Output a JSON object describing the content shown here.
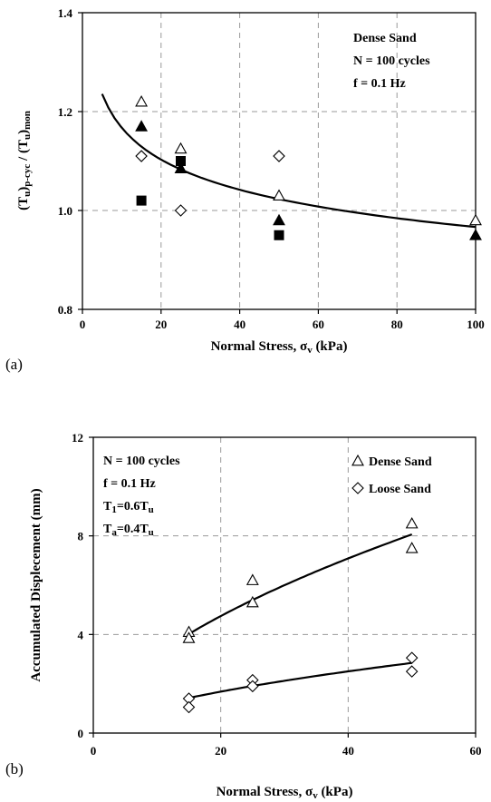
{
  "chart_data": [
    {
      "id": "a",
      "type": "scatter",
      "panel_label": "(a)",
      "title": "",
      "xlabel": "Normal Stress, σv (kPa)",
      "ylabel": "(Tu)p-cyc / (Tu)mon",
      "xlim": [
        0,
        100
      ],
      "ylim": [
        0.8,
        1.4
      ],
      "xticks": [
        0,
        20,
        40,
        60,
        80,
        100
      ],
      "yticks": [
        0.8,
        1.0,
        1.2,
        1.4
      ],
      "ytick_labels": [
        "0.8",
        "1.0",
        "1.2",
        "1.4"
      ],
      "grid": true,
      "annotations": [
        "Dense Sand",
        "N = 100 cycles",
        "f = 0.1 Hz"
      ],
      "series": [
        {
          "marker": "open-triangle",
          "points": [
            [
              15,
              1.22
            ],
            [
              25,
              1.125
            ],
            [
              50,
              1.03
            ],
            [
              100,
              0.98
            ]
          ]
        },
        {
          "marker": "filled-triangle",
          "points": [
            [
              15,
              1.17
            ],
            [
              25,
              1.085
            ],
            [
              50,
              0.98
            ],
            [
              100,
              0.95
            ]
          ]
        },
        {
          "marker": "filled-square",
          "points": [
            [
              15,
              1.02
            ],
            [
              25,
              1.1
            ],
            [
              50,
              0.95
            ]
          ]
        },
        {
          "marker": "open-diamond",
          "points": [
            [
              15,
              1.11
            ],
            [
              25,
              1.0
            ],
            [
              50,
              1.11
            ]
          ]
        }
      ],
      "fit": {
        "power": {
          "a": 1.41,
          "b": -0.082
        },
        "x_from": 5,
        "x_to": 100
      }
    },
    {
      "id": "b",
      "type": "scatter",
      "panel_label": "(b)",
      "title": "",
      "xlabel": "Normal Stress, σv (kPa)",
      "ylabel": "Accumulated Displecement (mm)",
      "xlim": [
        0,
        60
      ],
      "ylim": [
        0,
        12
      ],
      "xticks": [
        0,
        20,
        40,
        60
      ],
      "yticks": [
        0,
        4,
        8,
        12
      ],
      "ytick_labels": [
        "0",
        "4",
        "8",
        "12"
      ],
      "grid": true,
      "annotations": [
        "N = 100 cycles",
        "f = 0.1 Hz",
        "T1=0.6Tu",
        "Ta=0.4Tu"
      ],
      "legend_position": "top-right",
      "series": [
        {
          "name": "Dense Sand",
          "marker": "open-triangle",
          "points": [
            [
              15,
              4.1
            ],
            [
              15,
              3.85
            ],
            [
              25,
              6.2
            ],
            [
              25,
              5.3
            ],
            [
              50,
              8.5
            ],
            [
              50,
              7.5
            ]
          ],
          "fit": {
            "power": {
              "a": 0.84,
              "b": 0.578
            },
            "x_from": 15,
            "x_to": 50
          }
        },
        {
          "name": "Loose Sand",
          "marker": "open-diamond",
          "points": [
            [
              15,
              1.4
            ],
            [
              15,
              1.05
            ],
            [
              25,
              2.15
            ],
            [
              25,
              1.9
            ],
            [
              50,
              3.05
            ],
            [
              50,
              2.5
            ]
          ],
          "fit": {
            "power": {
              "a": 0.3,
              "b": 0.575
            },
            "x_from": 15,
            "x_to": 50
          }
        }
      ]
    }
  ]
}
